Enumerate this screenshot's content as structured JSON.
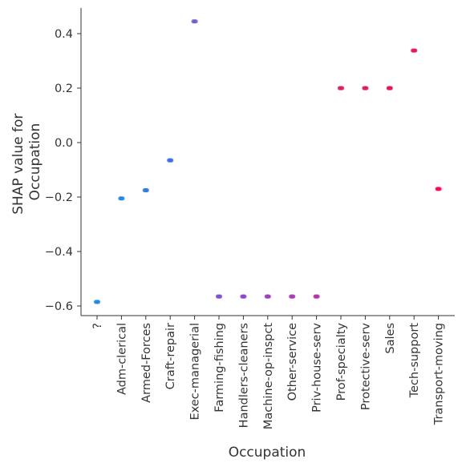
{
  "chart_data": {
    "type": "scatter",
    "xlabel": "Occupation",
    "ylabel_lines": [
      "SHAP value for",
      "Occupation"
    ],
    "categories": [
      "?",
      "Adm-clerical",
      "Armed-Forces",
      "Craft-repair",
      "Exec-managerial",
      "Farming-fishing",
      "Handlers-cleaners",
      "Machine-op-inspct",
      "Other-service",
      "Priv-house-serv",
      "Prof-specialty",
      "Protective-serv",
      "Sales",
      "Tech-support",
      "Transport-moving"
    ],
    "values": [
      -0.585,
      -0.205,
      -0.175,
      -0.065,
      0.445,
      -0.565,
      -0.565,
      -0.565,
      -0.565,
      -0.565,
      0.2,
      0.2,
      0.2,
      0.338,
      -0.17
    ],
    "point_colors": [
      "#1e88e5",
      "#1e88e5",
      "#2a7ae2",
      "#3b6fe0",
      "#6b5ed6",
      "#7c4fd0",
      "#8a44c8",
      "#9b3cbf",
      "#a838b5",
      "#b52fa6",
      "#d81b60",
      "#d81b60",
      "#e0105a",
      "#e8105a",
      "#ff0052"
    ],
    "ylim": [
      -0.64,
      0.495
    ],
    "yticks": [
      0.4,
      0.2,
      0.0,
      -0.2,
      -0.4,
      -0.6
    ],
    "ytick_labels": [
      "0.4",
      "0.2",
      "0.0",
      "−0.2",
      "−0.4",
      "−0.6"
    ],
    "grid": false,
    "legend": "none"
  }
}
